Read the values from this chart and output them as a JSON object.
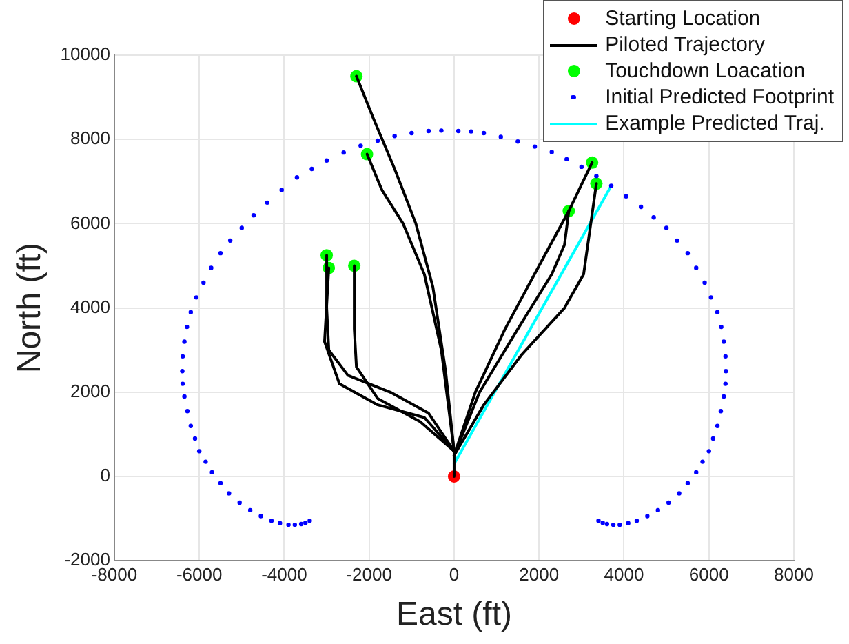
{
  "chart_data": {
    "type": "scatter",
    "xlabel": "East (ft)",
    "ylabel": "North (ft)",
    "xlim": [
      -8000,
      8000
    ],
    "xticks": [
      -8000,
      -6000,
      -4000,
      -2000,
      0,
      2000,
      4000,
      6000,
      8000
    ],
    "ylim": [
      -2000,
      10000
    ],
    "yticks": [
      -2000,
      0,
      2000,
      4000,
      6000,
      8000,
      10000
    ],
    "grid": true,
    "legend": "top right",
    "series": [
      {
        "name": "Initial Predicted Footprint",
        "type": "scatter",
        "marker": "circle",
        "color": "#0000ff",
        "x": [
          -3400,
          -3500,
          -3600,
          -3750,
          -3900,
          -4100,
          -4300,
          -4550,
          -4800,
          -5050,
          -5300,
          -5500,
          -5700,
          -5850,
          -6000,
          -6100,
          -6200,
          -6280,
          -6350,
          -6390,
          -6400,
          -6390,
          -6350,
          -6290,
          -6200,
          -6070,
          -5900,
          -5720,
          -5500,
          -5270,
          -5000,
          -4720,
          -4400,
          -4060,
          -3700,
          -3350,
          -3000,
          -2600,
          -2200,
          -1800,
          -1400,
          -1000,
          -600,
          -300,
          100,
          400,
          700,
          1100,
          1500,
          1900,
          2300,
          2650,
          3000,
          3350,
          3700,
          4050,
          4400,
          4700,
          5000,
          5250,
          5500,
          5700,
          5900,
          6050,
          6200,
          6290,
          6350,
          6390,
          6400,
          6390,
          6350,
          6280,
          6200,
          6100,
          6000,
          5850,
          5700,
          5500,
          5300,
          5050,
          4800,
          4550,
          4300,
          4100,
          3900,
          3750,
          3600,
          3500,
          3400
        ],
        "values": [
          -1050,
          -1100,
          -1130,
          -1150,
          -1150,
          -1110,
          -1050,
          -940,
          -800,
          -620,
          -400,
          -160,
          100,
          350,
          600,
          900,
          1200,
          1550,
          1900,
          2200,
          2500,
          2850,
          3200,
          3550,
          3900,
          4250,
          4600,
          4950,
          5300,
          5600,
          5900,
          6200,
          6500,
          6800,
          7100,
          7300,
          7500,
          7690,
          7850,
          7970,
          8080,
          8150,
          8200,
          8210,
          8200,
          8190,
          8150,
          8060,
          7950,
          7830,
          7700,
          7530,
          7350,
          7130,
          6900,
          6650,
          6400,
          6150,
          5900,
          5600,
          5300,
          4950,
          4600,
          4250,
          3900,
          3550,
          3200,
          2850,
          2500,
          2200,
          1900,
          1550,
          1200,
          900,
          600,
          350,
          100,
          -160,
          -400,
          -620,
          -800,
          -940,
          -1050,
          -1110,
          -1150,
          -1150,
          -1130,
          -1100,
          -1050
        ]
      },
      {
        "name": "Piloted Trajectory",
        "type": "line",
        "color": "#000000",
        "x": [
          0,
          0,
          -200,
          -500,
          -900,
          -1400,
          -1900,
          -2300
        ],
        "values": [
          0,
          600,
          2500,
          4500,
          6000,
          7300,
          8500,
          9500
        ]
      },
      {
        "type": "line",
        "color": "#000000",
        "x": [
          0,
          -300,
          -700,
          -1200,
          -1700,
          -2050
        ],
        "values": [
          600,
          3000,
          4800,
          6000,
          6800,
          7650
        ]
      },
      {
        "type": "line",
        "color": "#000000",
        "x": [
          0,
          -600,
          -1500,
          -2500,
          -2950,
          -3000,
          -3000
        ],
        "values": [
          600,
          1500,
          2000,
          2400,
          3000,
          4000,
          5250
        ]
      },
      {
        "type": "line",
        "color": "#000000",
        "x": [
          0,
          -700,
          -1800,
          -2700,
          -3050,
          -2950
        ],
        "values": [
          600,
          1400,
          1700,
          2200,
          3200,
          4950
        ]
      },
      {
        "type": "line",
        "color": "#000000",
        "x": [
          0,
          -800,
          -1800,
          -2300,
          -2350,
          -2350
        ],
        "values": [
          600,
          1300,
          1850,
          2600,
          3500,
          5000
        ]
      },
      {
        "type": "line",
        "color": "#000000",
        "x": [
          0,
          500,
          1200,
          2000,
          2700,
          3250
        ],
        "values": [
          500,
          2000,
          3500,
          5000,
          6300,
          7450
        ]
      },
      {
        "type": "line",
        "color": "#000000",
        "x": [
          0,
          700,
          1600,
          2600,
          3050,
          3350
        ],
        "values": [
          500,
          1700,
          2900,
          4000,
          4800,
          6950
        ]
      },
      {
        "type": "line",
        "color": "#000000",
        "x": [
          0,
          600,
          1500,
          2300,
          2600,
          2700
        ],
        "values": [
          500,
          2000,
          3500,
          4800,
          5500,
          6300
        ]
      },
      {
        "name": "Example Predicted Traj.",
        "type": "line",
        "color": "#00ffff",
        "x": [
          0,
          3700
        ],
        "values": [
          300,
          6900
        ]
      },
      {
        "name": "Touchdown Loacation",
        "type": "scatter",
        "marker": "circle",
        "color": "#00ff00",
        "x": [
          -2300,
          -2050,
          -3000,
          -2950,
          -2350,
          3250,
          3350,
          2700
        ],
        "values": [
          9500,
          7650,
          5250,
          4950,
          5000,
          7450,
          6950,
          6300
        ]
      },
      {
        "name": "Starting Location",
        "type": "scatter",
        "marker": "circle",
        "color": "#ff0000",
        "x": [
          0
        ],
        "values": [
          0
        ]
      }
    ]
  }
}
